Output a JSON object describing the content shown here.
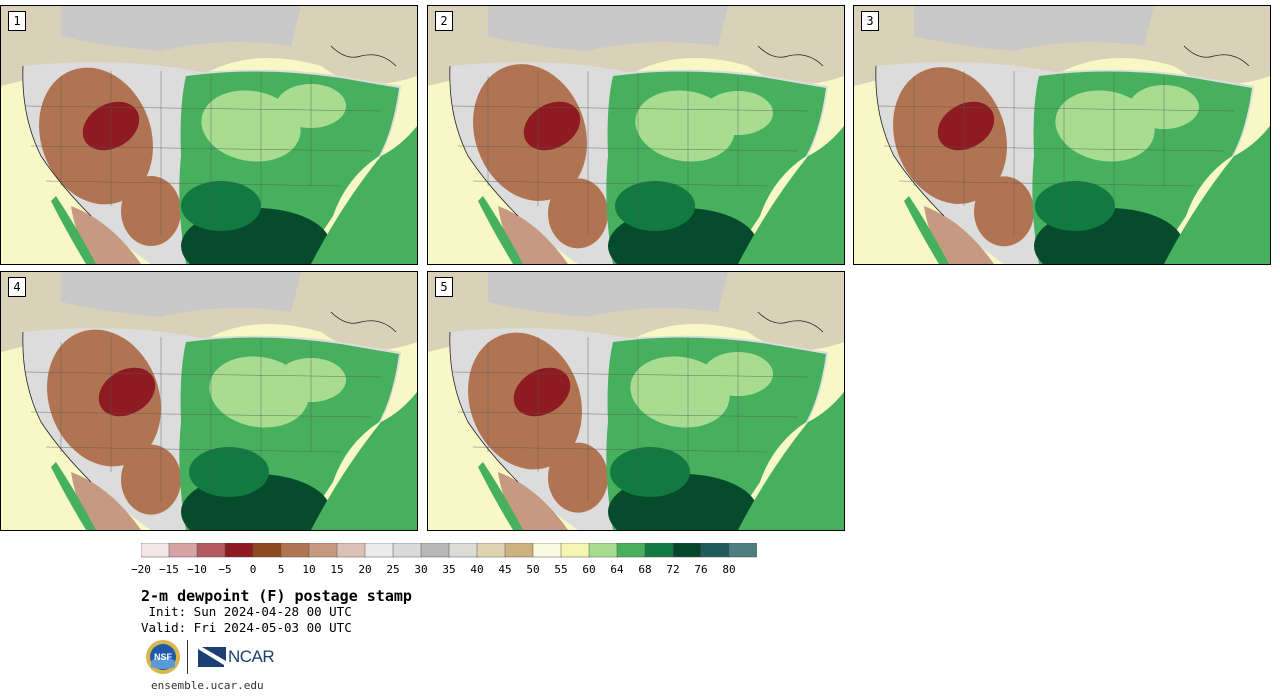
{
  "title": "2-m dewpoint (F) postage stamp",
  "init": " Init: Sun 2024-04-28 00 UTC",
  "valid": "Valid: Fri 2024-05-03 00 UTC",
  "website": "ensemble.ucar.edu",
  "logos": {
    "nsf_text": "NSF",
    "ncar_text": "NCAR"
  },
  "members": [
    "1",
    "2",
    "3",
    "4",
    "5"
  ],
  "colorbar": {
    "ticks": [
      "−20",
      "−15",
      "−10",
      "−5",
      "0",
      "5",
      "10",
      "15",
      "20",
      "25",
      "30",
      "35",
      "40",
      "45",
      "50",
      "55",
      "60",
      "64",
      "68",
      "72",
      "76",
      "80"
    ],
    "colors": [
      "#f4e6e6",
      "#d6a4a4",
      "#b45a5e",
      "#8e1a22",
      "#8e4a1e",
      "#b07452",
      "#c69a82",
      "#dcc2b4",
      "#ececec",
      "#dadada",
      "#b8b8b8",
      "#dcdcd4",
      "#e0d3b2",
      "#ccb27e",
      "#fafae0",
      "#f6f6b0",
      "#a8dc90",
      "#46b05e",
      "#117a40",
      "#06472c",
      "#215a5a",
      "#4f7e80"
    ]
  },
  "colors": {
    "ocean_pacific": "#f8f8c6",
    "gulf_warm": "#064c2c",
    "land_moist": "#46b05e",
    "land_dry": "#b07452",
    "land_very_dry": "#8e1a22"
  }
}
